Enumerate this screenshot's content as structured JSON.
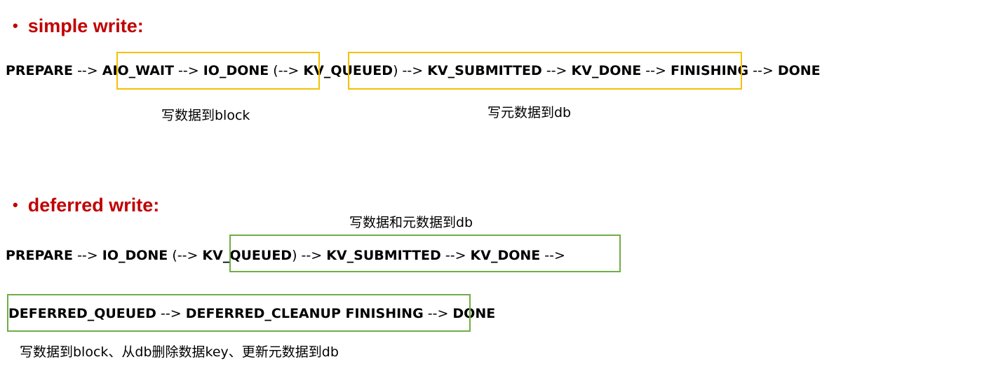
{
  "colors": {
    "heading": "#c00000",
    "box_simple": "#f5c000",
    "box_deferred": "#70ad47"
  },
  "simple": {
    "bullet": "•",
    "title": "simple write:",
    "flow": [
      {
        "kind": "state",
        "text": "PREPARE"
      },
      {
        "kind": "arrow",
        "text": " --> "
      },
      {
        "kind": "state",
        "text": "AIO_WAIT"
      },
      {
        "kind": "arrow",
        "text": " --> "
      },
      {
        "kind": "state",
        "text": "IO_DONE"
      },
      {
        "kind": "arrow",
        "text": " (--> "
      },
      {
        "kind": "state",
        "text": "KV_QUEUED"
      },
      {
        "kind": "arrow",
        "text": ") --> "
      },
      {
        "kind": "state",
        "text": "KV_SUBMITTED"
      },
      {
        "kind": "arrow",
        "text": " --> "
      },
      {
        "kind": "state",
        "text": "KV_DONE"
      },
      {
        "kind": "arrow",
        "text": " --> "
      },
      {
        "kind": "state",
        "text": "FINISHING"
      },
      {
        "kind": "arrow",
        "text": " --> "
      },
      {
        "kind": "state",
        "text": "DONE"
      }
    ],
    "note_block": "写数据到block",
    "note_db": "写元数据到db"
  },
  "deferred": {
    "bullet": "•",
    "title": "deferred write:",
    "note_top": "写数据和元数据到db",
    "flow1": [
      {
        "kind": "state",
        "text": "PREPARE"
      },
      {
        "kind": "arrow",
        "text": " --> "
      },
      {
        "kind": "state",
        "text": "IO_DONE"
      },
      {
        "kind": "arrow",
        "text": " (--> "
      },
      {
        "kind": "state",
        "text": "KV_QUEUED"
      },
      {
        "kind": "arrow",
        "text": ") --> "
      },
      {
        "kind": "state",
        "text": "KV_SUBMITTED"
      },
      {
        "kind": "arrow",
        "text": " --> "
      },
      {
        "kind": "state",
        "text": "KV_DONE"
      },
      {
        "kind": "arrow",
        "text": " -->"
      }
    ],
    "flow2": [
      {
        "kind": "state",
        "text": "DEFERRED_QUEUED"
      },
      {
        "kind": "arrow",
        "text": " --> "
      },
      {
        "kind": "state",
        "text": "DEFERRED_CLEANUP FINISHING"
      },
      {
        "kind": "arrow",
        "text": " --> "
      },
      {
        "kind": "state",
        "text": "DONE"
      }
    ],
    "note_bottom": "写数据到block、从db删除数据key、更新元数据到db"
  }
}
